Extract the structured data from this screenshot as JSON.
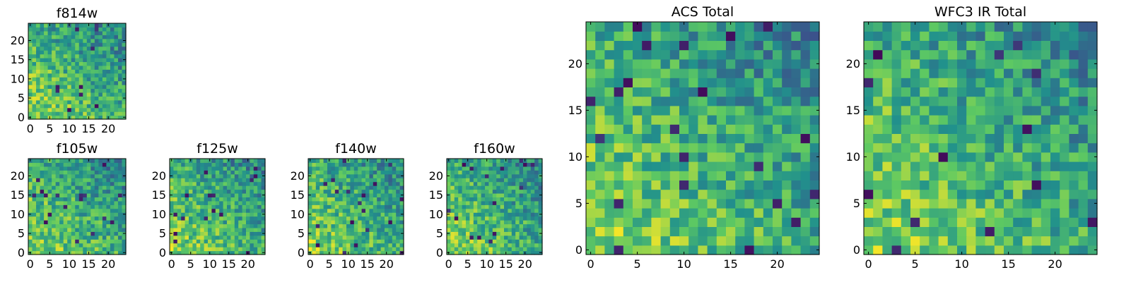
{
  "chart_data": [
    {
      "type": "heatmap",
      "title": "f814w",
      "grid_size": 25,
      "xticks": [
        "0",
        "5",
        "10",
        "15",
        "20"
      ],
      "yticks": [
        "0",
        "5",
        "10",
        "15",
        "20"
      ],
      "seed": 11,
      "value_range": [
        0,
        1
      ]
    },
    {
      "type": "heatmap",
      "title": "f105w",
      "grid_size": 25,
      "xticks": [
        "0",
        "5",
        "10",
        "15",
        "20"
      ],
      "yticks": [
        "0",
        "5",
        "10",
        "15",
        "20"
      ],
      "seed": 23,
      "value_range": [
        0,
        1
      ]
    },
    {
      "type": "heatmap",
      "title": "f125w",
      "grid_size": 25,
      "xticks": [
        "0",
        "5",
        "10",
        "15",
        "20"
      ],
      "yticks": [
        "0",
        "5",
        "10",
        "15",
        "20"
      ],
      "seed": 37,
      "value_range": [
        0,
        1
      ]
    },
    {
      "type": "heatmap",
      "title": "f140w",
      "grid_size": 25,
      "xticks": [
        "0",
        "5",
        "10",
        "15",
        "20"
      ],
      "yticks": [
        "0",
        "5",
        "10",
        "15",
        "20"
      ],
      "seed": 41,
      "value_range": [
        0,
        1
      ]
    },
    {
      "type": "heatmap",
      "title": "f160w",
      "grid_size": 25,
      "xticks": [
        "0",
        "5",
        "10",
        "15",
        "20"
      ],
      "yticks": [
        "0",
        "5",
        "10",
        "15",
        "20"
      ],
      "seed": 53,
      "value_range": [
        0,
        1
      ]
    },
    {
      "type": "heatmap",
      "title": "ACS Total",
      "grid_size": 25,
      "xticks": [
        "0",
        "5",
        "10",
        "15",
        "20"
      ],
      "yticks": [
        "0",
        "5",
        "10",
        "15",
        "20"
      ],
      "seed": 67,
      "value_range": [
        0,
        1
      ]
    },
    {
      "type": "heatmap",
      "title": "WFC3 IR Total",
      "grid_size": 25,
      "xticks": [
        "0",
        "5",
        "10",
        "15",
        "20"
      ],
      "yticks": [
        "0",
        "5",
        "10",
        "15",
        "20"
      ],
      "seed": 79,
      "value_range": [
        0,
        1
      ]
    }
  ],
  "colormap": [
    "#440154",
    "#3b528b",
    "#21918c",
    "#5ec962",
    "#fde725"
  ]
}
